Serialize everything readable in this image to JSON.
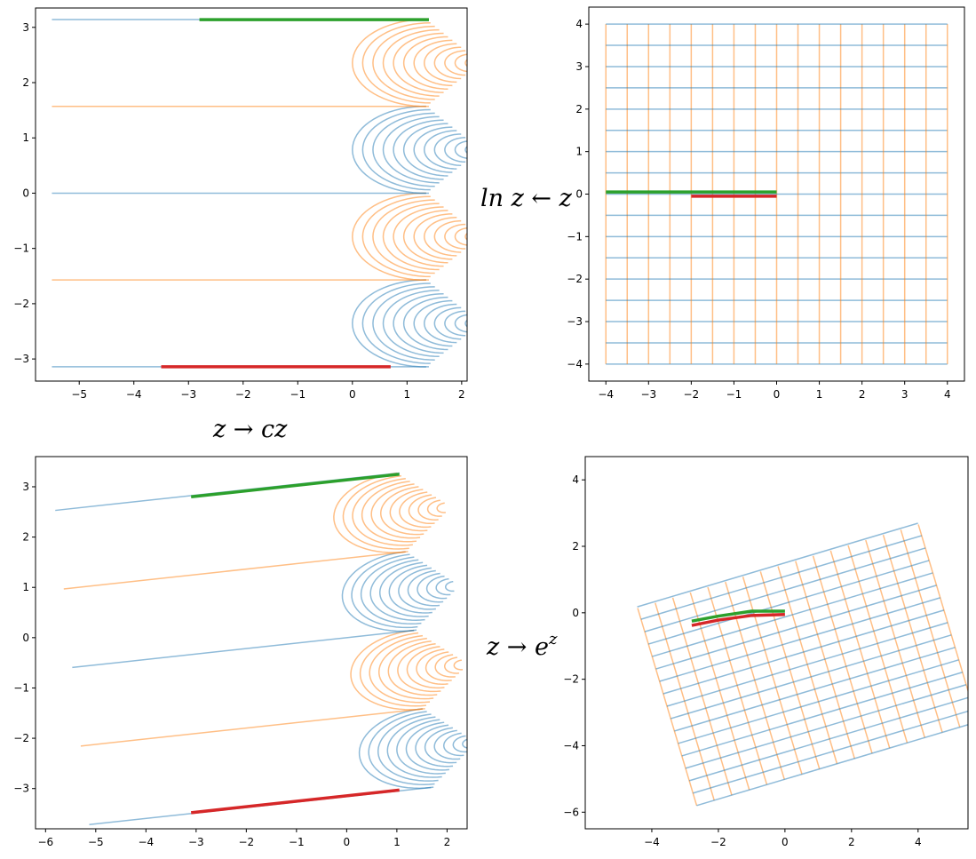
{
  "colors": {
    "blue": "#1f77b4",
    "orange": "#ff7f0e",
    "green": "#2ca02c",
    "red": "#d62728"
  },
  "labels": {
    "log": "ln z ← z",
    "scale": "z → cz",
    "exp": "z → e^z"
  },
  "chart_data": [
    {
      "id": "top-left",
      "type": "line",
      "description": "exp of grid",
      "xlim": [
        -5.8,
        2.1
      ],
      "ylim": [
        -3.4,
        3.35
      ],
      "xticks": [
        -5,
        -4,
        -3,
        -2,
        -1,
        0,
        1,
        2
      ],
      "yticks": [
        -3,
        -2,
        -1,
        0,
        1,
        2,
        3
      ],
      "series": [
        {
          "color": "green",
          "points": [
            [
              -2.8,
              3.14
            ],
            [
              1.4,
              3.14
            ]
          ]
        },
        {
          "color": "red",
          "points": [
            [
              -3.5,
              -3.14
            ],
            [
              0.7,
              -3.14
            ]
          ]
        }
      ]
    },
    {
      "id": "top-right",
      "type": "line",
      "description": "rectangular grid",
      "xlim": [
        -4.4,
        4.4
      ],
      "ylim": [
        -4.4,
        4.4
      ],
      "xticks": [
        -4,
        -3,
        -2,
        -1,
        0,
        1,
        2,
        3,
        4
      ],
      "yticks": [
        -4,
        -3,
        -2,
        -1,
        0,
        1,
        2,
        3,
        4
      ],
      "series": [
        {
          "color": "green",
          "points": [
            [
              -4,
              0.05
            ],
            [
              0,
              0.05
            ]
          ]
        },
        {
          "color": "red",
          "points": [
            [
              -2,
              -0.05
            ],
            [
              0,
              -0.05
            ]
          ]
        }
      ]
    },
    {
      "id": "bottom-left",
      "type": "line",
      "description": "scaled exp grid",
      "xlim": [
        -6.2,
        2.4
      ],
      "ylim": [
        -3.8,
        3.6
      ],
      "xticks": [
        -6,
        -5,
        -4,
        -3,
        -2,
        -1,
        0,
        1,
        2
      ],
      "yticks": [
        -3,
        -2,
        -1,
        0,
        1,
        2,
        3
      ],
      "series": [
        {
          "color": "green",
          "points": [
            [
              -3.1,
              2.8
            ],
            [
              1.05,
              3.25
            ]
          ]
        },
        {
          "color": "red",
          "points": [
            [
              -3.1,
              -3.48
            ],
            [
              1.05,
              -3.03
            ]
          ]
        }
      ]
    },
    {
      "id": "bottom-right",
      "type": "line",
      "description": "rotated mapped grid",
      "xlim": [
        -6.0,
        5.5
      ],
      "ylim": [
        -6.5,
        4.7
      ],
      "xticks": [
        -4,
        -2,
        0,
        2,
        4
      ],
      "yticks": [
        -6,
        -4,
        -2,
        0,
        2,
        4
      ],
      "series": [
        {
          "color": "green",
          "points": [
            [
              -2.8,
              -0.25
            ],
            [
              -2,
              -0.1
            ],
            [
              -1,
              0.05
            ],
            [
              0,
              0.05
            ]
          ]
        },
        {
          "color": "red",
          "points": [
            [
              -2.8,
              -0.38
            ],
            [
              -2,
              -0.22
            ],
            [
              -1,
              -0.08
            ],
            [
              0,
              -0.05
            ]
          ]
        }
      ]
    }
  ]
}
